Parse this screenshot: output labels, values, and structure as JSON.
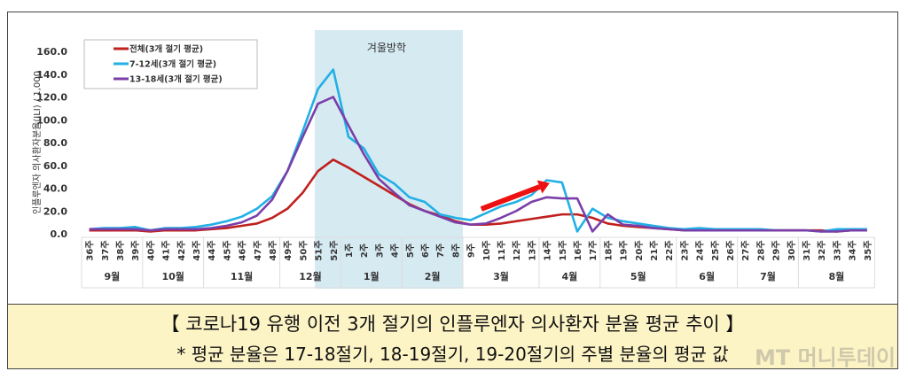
{
  "chart_data": {
    "type": "line",
    "title": "",
    "ylabel": "인플루엔자 의사환자분율(ILI) / 1,000",
    "ylim": [
      0,
      160
    ],
    "yticks": [
      "0.0",
      "20.0",
      "40.0",
      "60.0",
      "80.0",
      "100.0",
      "120.0",
      "140.0",
      "160.0"
    ],
    "grid": false,
    "legend_placement": "top-left",
    "categories": [
      "36주",
      "37주",
      "38주",
      "39주",
      "40주",
      "41주",
      "42주",
      "43주",
      "44주",
      "45주",
      "46주",
      "47주",
      "48주",
      "49주",
      "50주",
      "51주",
      "52주",
      "1주",
      "2주",
      "3주",
      "4주",
      "5주",
      "6주",
      "7주",
      "8주",
      "9주",
      "10주",
      "11주",
      "12주",
      "13주",
      "14주",
      "15주",
      "16주",
      "17주",
      "18주",
      "19주",
      "20주",
      "21주",
      "22주",
      "23주",
      "24주",
      "25주",
      "26주",
      "27주",
      "28주",
      "29주",
      "30주",
      "31주",
      "32주",
      "33주",
      "34주",
      "35주"
    ],
    "months": [
      {
        "label": "9월",
        "weeks": 4
      },
      {
        "label": "10월",
        "weeks": 4
      },
      {
        "label": "11월",
        "weeks": 5
      },
      {
        "label": "12월",
        "weeks": 4
      },
      {
        "label": "1월",
        "weeks": 4
      },
      {
        "label": "2월",
        "weeks": 4
      },
      {
        "label": "3월",
        "weeks": 5
      },
      {
        "label": "4월",
        "weeks": 4
      },
      {
        "label": "5월",
        "weeks": 5
      },
      {
        "label": "6월",
        "weeks": 4
      },
      {
        "label": "7월",
        "weeks": 4
      },
      {
        "label": "8월",
        "weeks": 5
      }
    ],
    "shaded_region": {
      "label": "겨울방학",
      "from": "51주",
      "to": "8주",
      "color": "#d6eaf2"
    },
    "annotation_arrow": {
      "from": "10주",
      "to": "14주",
      "color": "#ee1111"
    },
    "series": [
      {
        "name": "전체(3개 절기 평균)",
        "color": "#c0201e",
        "values": [
          3,
          3,
          3,
          3,
          2,
          3,
          3,
          3,
          4,
          5,
          7,
          9,
          14,
          22,
          36,
          55,
          65,
          58,
          50,
          42,
          34,
          26,
          20,
          16,
          11,
          8,
          8,
          9,
          11,
          13,
          15,
          17,
          17,
          14,
          9,
          7,
          6,
          5,
          4,
          3,
          3,
          3,
          3,
          3,
          3,
          3,
          3,
          3,
          3,
          2,
          3,
          3
        ]
      },
      {
        "name": "7-12세(3개 절기 평균)",
        "color": "#22b0e6",
        "values": [
          4,
          5,
          5,
          6,
          3,
          5,
          5,
          6,
          8,
          11,
          15,
          22,
          33,
          55,
          90,
          127,
          144,
          85,
          75,
          52,
          44,
          32,
          28,
          17,
          14,
          12,
          18,
          24,
          28,
          34,
          47,
          45,
          2,
          22,
          14,
          11,
          9,
          7,
          5,
          4,
          5,
          4,
          4,
          4,
          4,
          3,
          3,
          3,
          2,
          4,
          4,
          4
        ]
      },
      {
        "name": "13-18세(3개 절기 평균)",
        "color": "#7a3fa8",
        "values": [
          4,
          4,
          4,
          4,
          3,
          4,
          4,
          4,
          5,
          7,
          10,
          16,
          30,
          55,
          85,
          114,
          120,
          95,
          70,
          48,
          36,
          25,
          20,
          15,
          10,
          8,
          9,
          14,
          20,
          28,
          32,
          31,
          31,
          2,
          17,
          8,
          7,
          5,
          4,
          3,
          3,
          3,
          3,
          3,
          3,
          3,
          3,
          3,
          2,
          2,
          3,
          3
        ]
      }
    ]
  },
  "caption": {
    "title": "【 코로나19 유행 이전 3개 절기의 인플루엔자 의사환자 분율 평균 추이 】",
    "note": "* 평균 분율은 17-18절기, 18-19절기, 19-20절기의 주별 분율의 평균 값"
  },
  "watermark": "MT 머니투데이"
}
